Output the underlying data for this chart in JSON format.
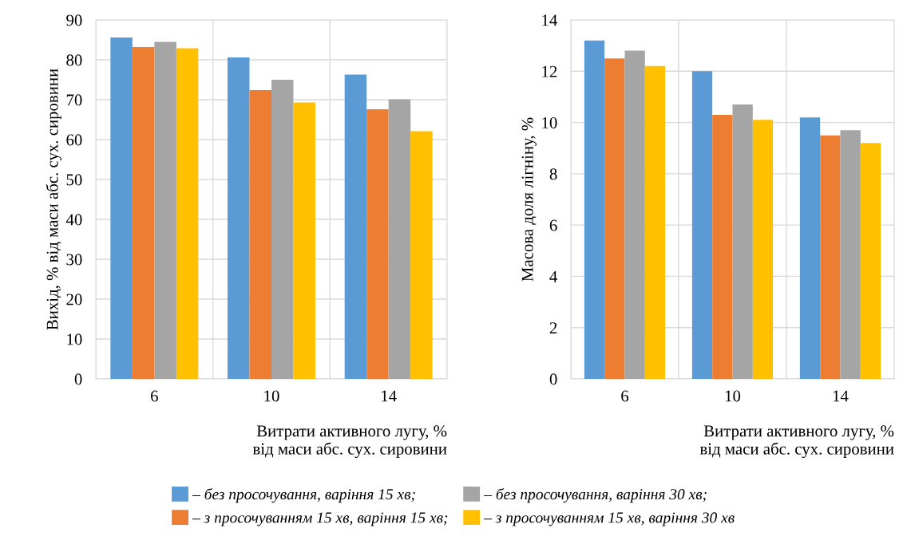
{
  "chart_data": [
    {
      "type": "bar",
      "categories": [
        "6",
        "10",
        "14"
      ],
      "xlabel": "Витрати активного лугу, %\nвід маси абс. сух. сировини",
      "ylabel": "Вихід, % від маси абс. сух. сировини",
      "ylim": [
        0,
        90
      ],
      "yticks": [
        0,
        10,
        20,
        30,
        40,
        50,
        60,
        70,
        80,
        90
      ],
      "grid": true,
      "legend": "bottom",
      "series": [
        {
          "name": "– без просочування, варіння 15 хв;",
          "color": "#5b9bd5",
          "values": [
            85.6,
            80.6,
            76.3
          ]
        },
        {
          "name": "– з просочуванням 15 хв, варіння 15 хв;",
          "color": "#ed7d31",
          "values": [
            83.2,
            72.4,
            67.6
          ]
        },
        {
          "name": "– без просочування, варіння 30 хв;",
          "color": "#a5a5a5",
          "values": [
            84.5,
            75.0,
            70.1
          ]
        },
        {
          "name": "– з просочуванням 15 хв, варіння 30 хв",
          "color": "#ffc000",
          "values": [
            82.9,
            69.3,
            62.1
          ]
        }
      ]
    },
    {
      "type": "bar",
      "categories": [
        "6",
        "10",
        "14"
      ],
      "xlabel": "Витрати активного лугу, %\nвід маси абс. сух. сировини",
      "ylabel": "Масова доля лігніну, %",
      "ylim": [
        0,
        14
      ],
      "yticks": [
        0,
        2,
        4,
        6,
        8,
        10,
        12,
        14
      ],
      "grid": true,
      "series": [
        {
          "color": "#5b9bd5",
          "values": [
            13.2,
            12.0,
            10.2
          ]
        },
        {
          "color": "#ed7d31",
          "values": [
            12.5,
            10.3,
            9.5
          ]
        },
        {
          "color": "#a5a5a5",
          "values": [
            12.8,
            10.7,
            9.7
          ]
        },
        {
          "color": "#ffc000",
          "values": [
            12.2,
            10.1,
            9.2
          ]
        }
      ]
    }
  ]
}
